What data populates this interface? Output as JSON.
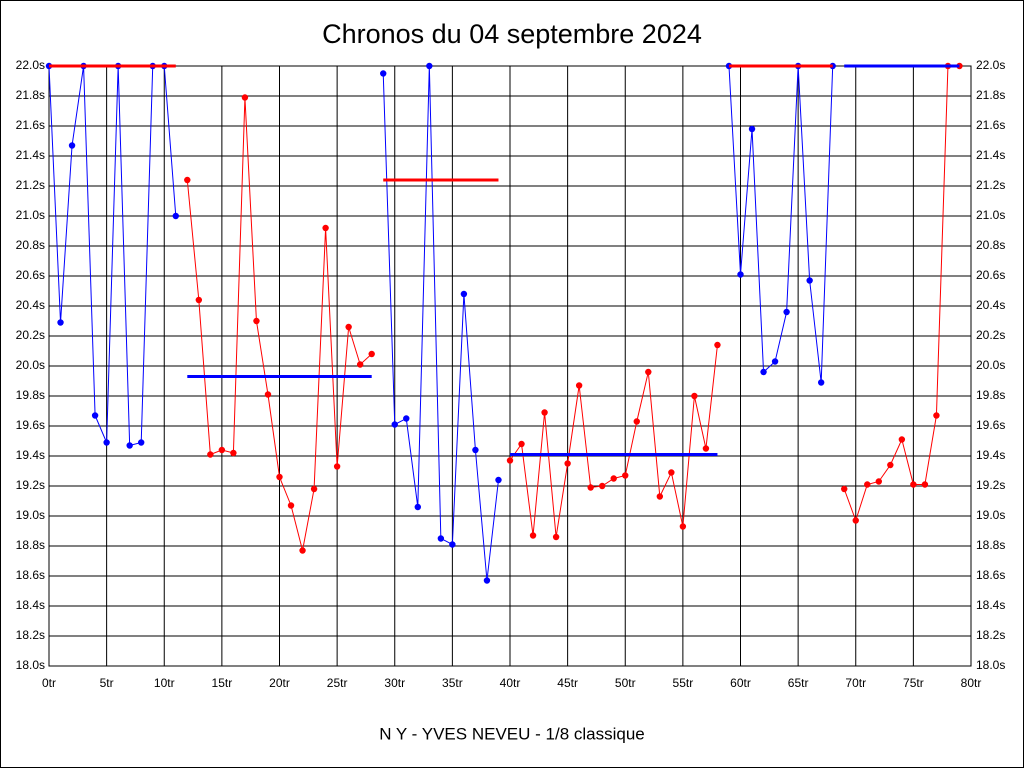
{
  "chart_data": {
    "type": "line",
    "title": "Chronos du 04 septembre 2024",
    "xlabel": "N Y - YVES NEVEU - 1/8 classique",
    "xlim": [
      0,
      80
    ],
    "ylim": [
      18.0,
      22.0
    ],
    "grid": true,
    "right_axis_labels": true,
    "xticks": [
      {
        "value": 0,
        "label": "0tr"
      },
      {
        "value": 5,
        "label": "5tr"
      },
      {
        "value": 10,
        "label": "10tr"
      },
      {
        "value": 15,
        "label": "15tr"
      },
      {
        "value": 20,
        "label": "20tr"
      },
      {
        "value": 25,
        "label": "25tr"
      },
      {
        "value": 30,
        "label": "30tr"
      },
      {
        "value": 35,
        "label": "35tr"
      },
      {
        "value": 40,
        "label": "40tr"
      },
      {
        "value": 45,
        "label": "45tr"
      },
      {
        "value": 50,
        "label": "50tr"
      },
      {
        "value": 55,
        "label": "55tr"
      },
      {
        "value": 60,
        "label": "60tr"
      },
      {
        "value": 65,
        "label": "65tr"
      },
      {
        "value": 70,
        "label": "70tr"
      },
      {
        "value": 75,
        "label": "75tr"
      },
      {
        "value": 80,
        "label": "80tr"
      }
    ],
    "yticks": [
      {
        "value": 18.0,
        "label": "18.0s"
      },
      {
        "value": 18.2,
        "label": "18.2s"
      },
      {
        "value": 18.4,
        "label": "18.4s"
      },
      {
        "value": 18.6,
        "label": "18.6s"
      },
      {
        "value": 18.8,
        "label": "18.8s"
      },
      {
        "value": 19.0,
        "label": "19.0s"
      },
      {
        "value": 19.2,
        "label": "19.2s"
      },
      {
        "value": 19.4,
        "label": "19.4s"
      },
      {
        "value": 19.6,
        "label": "19.6s"
      },
      {
        "value": 19.8,
        "label": "19.8s"
      },
      {
        "value": 20.0,
        "label": "20.0s"
      },
      {
        "value": 20.2,
        "label": "20.2s"
      },
      {
        "value": 20.4,
        "label": "20.4s"
      },
      {
        "value": 20.6,
        "label": "20.6s"
      },
      {
        "value": 20.8,
        "label": "20.8s"
      },
      {
        "value": 21.0,
        "label": "21.0s"
      },
      {
        "value": 21.2,
        "label": "21.2s"
      },
      {
        "value": 21.4,
        "label": "21.4s"
      },
      {
        "value": 21.6,
        "label": "21.6s"
      },
      {
        "value": 21.8,
        "label": "21.8s"
      },
      {
        "value": 22.0,
        "label": "22.0s"
      }
    ],
    "series": [
      {
        "color": "#0000ff",
        "markers": true,
        "line_width": 1,
        "x": [
          0,
          1,
          2,
          3,
          4,
          5,
          6,
          7,
          8,
          9,
          10,
          11
        ],
        "values": [
          22.0,
          20.29,
          21.47,
          22.0,
          19.67,
          19.49,
          22.0,
          19.47,
          19.49,
          22.0,
          22.0,
          21.0
        ]
      },
      {
        "color": "#ff0000",
        "markers": false,
        "line_width": 3,
        "x": [
          0,
          11
        ],
        "values": [
          22.0,
          22.0
        ]
      },
      {
        "color": "#ff0000",
        "markers": true,
        "line_width": 1,
        "x": [
          12,
          13,
          14,
          15,
          16,
          17,
          18,
          19,
          20,
          21,
          22,
          23,
          24,
          25,
          26,
          27,
          28
        ],
        "values": [
          21.24,
          20.44,
          19.41,
          19.44,
          19.42,
          21.79,
          20.3,
          19.81,
          19.26,
          19.07,
          18.77,
          19.18,
          20.92,
          19.33,
          20.26,
          20.01,
          20.08
        ]
      },
      {
        "color": "#0000ff",
        "markers": false,
        "line_width": 3,
        "x": [
          12,
          28
        ],
        "values": [
          19.93,
          19.93
        ]
      },
      {
        "color": "#0000ff",
        "markers": true,
        "line_width": 1,
        "x": [
          29,
          30,
          31,
          32,
          33,
          34,
          35,
          36,
          37,
          38,
          39
        ],
        "values": [
          21.95,
          19.61,
          19.65,
          19.06,
          22.0,
          18.85,
          18.81,
          20.48,
          19.44,
          18.57,
          19.24
        ]
      },
      {
        "color": "#ff0000",
        "markers": false,
        "line_width": 3,
        "x": [
          29,
          39
        ],
        "values": [
          21.24,
          21.24
        ]
      },
      {
        "color": "#ff0000",
        "markers": true,
        "line_width": 1,
        "x": [
          40,
          41,
          42,
          43,
          44,
          45,
          46,
          47,
          48,
          49,
          50,
          51,
          52,
          53,
          54,
          55,
          56,
          57,
          58
        ],
        "values": [
          19.37,
          19.48,
          18.87,
          19.69,
          18.86,
          19.35,
          19.87,
          19.19,
          19.2,
          19.25,
          19.27,
          19.63,
          19.96,
          19.13,
          19.29,
          18.93,
          19.8,
          19.45,
          20.14
        ]
      },
      {
        "color": "#0000ff",
        "markers": false,
        "line_width": 3,
        "x": [
          40,
          58
        ],
        "values": [
          19.41,
          19.41
        ]
      },
      {
        "color": "#0000ff",
        "markers": true,
        "line_width": 1,
        "x": [
          59,
          60,
          61,
          62,
          63,
          64,
          65,
          66,
          67,
          68
        ],
        "values": [
          22.0,
          20.61,
          21.58,
          19.96,
          20.03,
          20.36,
          22.0,
          20.57,
          19.89,
          22.0
        ]
      },
      {
        "color": "#ff0000",
        "markers": false,
        "line_width": 3,
        "x": [
          59,
          68
        ],
        "values": [
          22.0,
          22.0
        ]
      },
      {
        "color": "#ff0000",
        "markers": true,
        "line_width": 1,
        "x": [
          69,
          70,
          71,
          72,
          73,
          74,
          75,
          76,
          77,
          78,
          79
        ],
        "values": [
          19.18,
          18.97,
          19.21,
          19.23,
          19.34,
          19.51,
          19.21,
          19.21,
          19.67,
          22.0,
          22.0
        ]
      },
      {
        "color": "#0000ff",
        "markers": false,
        "line_width": 3,
        "x": [
          69,
          79
        ],
        "values": [
          22.0,
          22.0
        ]
      }
    ]
  }
}
